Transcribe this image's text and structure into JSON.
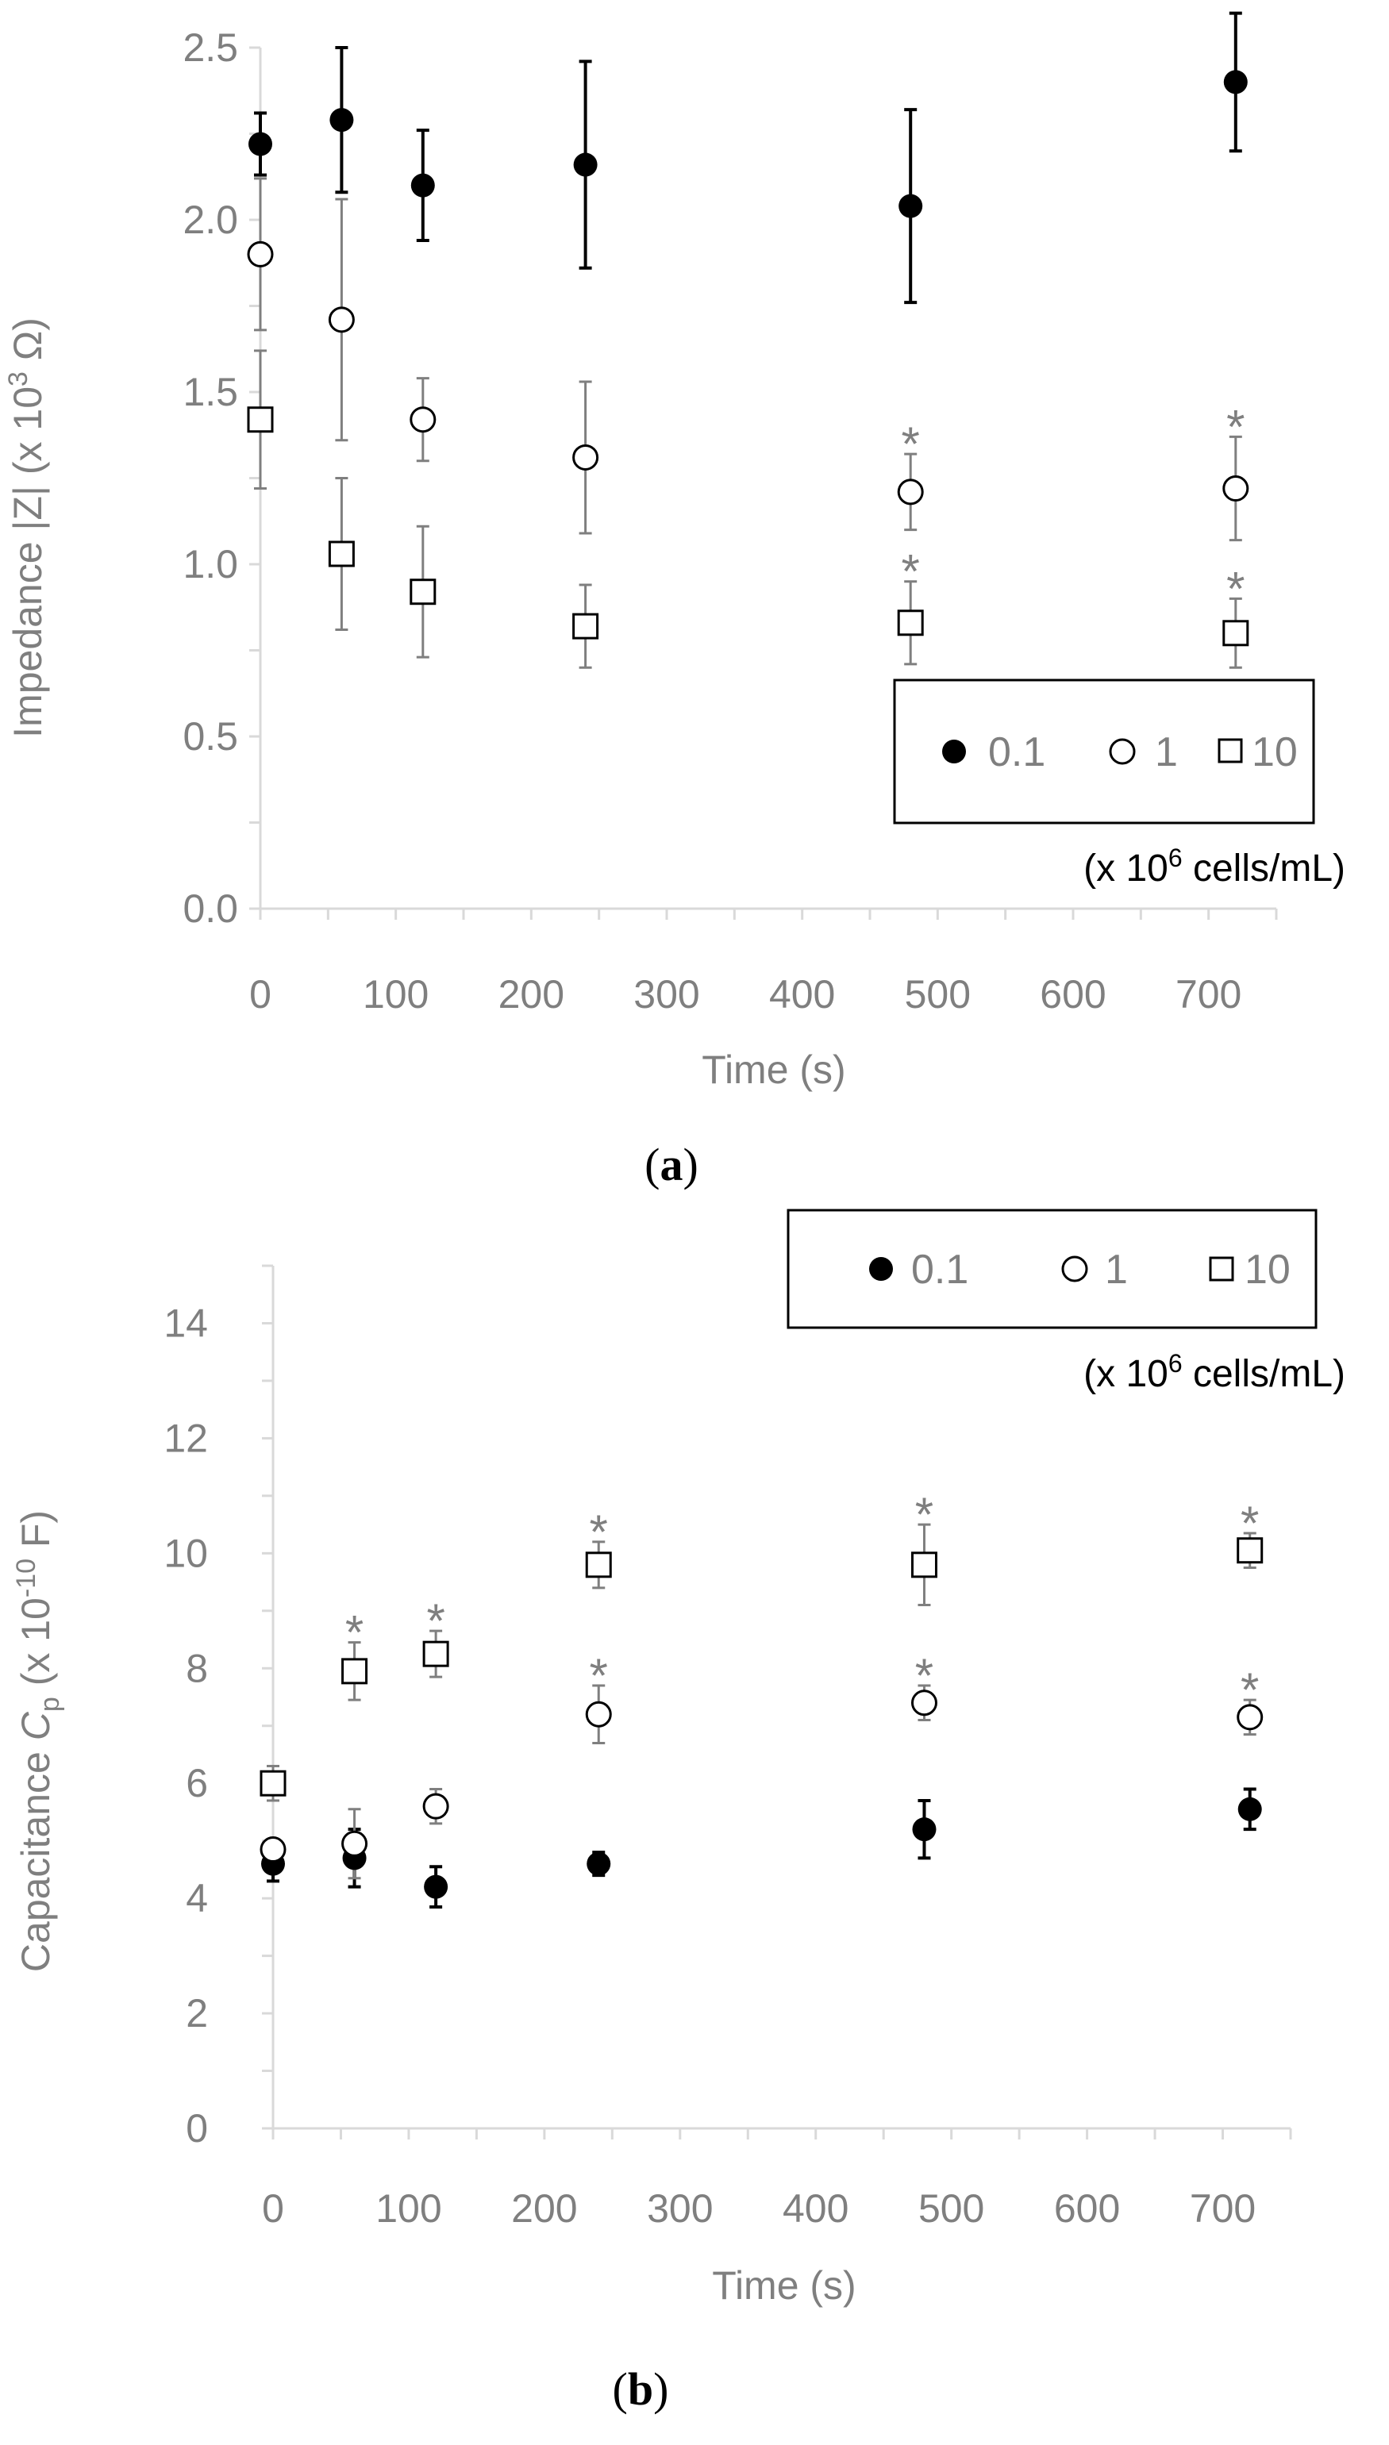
{
  "chart_data": [
    {
      "panel": "(a)",
      "panel_label_open": "(",
      "panel_label_letter": "a",
      "panel_label_close": ")",
      "type": "scatter",
      "xlabel": "Time (s)",
      "ylabel_parts": [
        "Impedance |Z| (x 10",
        "3",
        " Ω)"
      ],
      "xlim": [
        0,
        750
      ],
      "ylim": [
        0,
        2.5
      ],
      "x_ticks": [
        0,
        100,
        200,
        300,
        400,
        500,
        600,
        700
      ],
      "x_tick_labels": [
        "0",
        "100",
        "200",
        "300",
        "400",
        "500",
        "600",
        "700"
      ],
      "y_ticks": [
        0,
        0.5,
        1.0,
        1.5,
        2.0,
        2.5
      ],
      "y_tick_labels": [
        "0.0",
        "0.5",
        "1.0",
        "1.5",
        "2.0",
        "2.5"
      ],
      "series": [
        {
          "name": "0.1",
          "marker": "filled-circle",
          "x": [
            0,
            60,
            120,
            240,
            480,
            720
          ],
          "y": [
            2.22,
            2.29,
            2.1,
            2.16,
            2.04,
            2.4
          ],
          "err": [
            0.09,
            0.21,
            0.16,
            0.3,
            0.28,
            0.2
          ]
        },
        {
          "name": "1",
          "marker": "open-circle",
          "x": [
            0,
            60,
            120,
            240,
            480,
            720
          ],
          "y": [
            1.9,
            1.71,
            1.42,
            1.31,
            1.21,
            1.22
          ],
          "err": [
            0.22,
            0.35,
            0.12,
            0.22,
            0.11,
            0.15
          ]
        },
        {
          "name": "10",
          "marker": "open-square",
          "x": [
            0,
            60,
            120,
            240,
            480,
            720
          ],
          "y": [
            1.42,
            1.03,
            0.92,
            0.82,
            0.83,
            0.8
          ],
          "err": [
            0.2,
            0.22,
            0.19,
            0.12,
            0.12,
            0.1
          ]
        }
      ],
      "significance": [
        {
          "series": "1",
          "x": 480,
          "label": "*"
        },
        {
          "series": "1",
          "x": 720,
          "label": "*"
        },
        {
          "series": "10",
          "x": 480,
          "label": "*"
        },
        {
          "series": "10",
          "x": 720,
          "label": "*"
        }
      ],
      "legend": {
        "placement": "bottom-right",
        "items": [
          "0.1",
          "1",
          "10"
        ]
      },
      "unit_note_parts": [
        "(x 10",
        "6",
        " cells/mL)"
      ]
    },
    {
      "panel": "(b)",
      "panel_label_open": "(",
      "panel_label_letter": "b",
      "panel_label_close": ")",
      "type": "scatter",
      "xlabel": "Time (s)",
      "ylabel_parts": [
        "Capacitance ",
        "C",
        "p",
        " (x 10",
        "-10",
        " F)"
      ],
      "xlim": [
        0,
        750
      ],
      "ylim": [
        0,
        15
      ],
      "x_ticks": [
        0,
        100,
        200,
        300,
        400,
        500,
        600,
        700
      ],
      "x_tick_labels": [
        "0",
        "100",
        "200",
        "300",
        "400",
        "500",
        "600",
        "700"
      ],
      "y_ticks": [
        0,
        2,
        4,
        6,
        8,
        10,
        12,
        14
      ],
      "y_tick_labels": [
        "0",
        "2",
        "4",
        "6",
        "8",
        "10",
        "12",
        "14"
      ],
      "series": [
        {
          "name": "0.1",
          "marker": "filled-circle",
          "x": [
            0,
            60,
            120,
            240,
            480,
            720
          ],
          "y": [
            4.6,
            4.7,
            4.2,
            4.6,
            5.2,
            5.55
          ],
          "err": [
            0.3,
            0.5,
            0.35,
            0.2,
            0.5,
            0.35
          ]
        },
        {
          "name": "1",
          "marker": "open-circle",
          "x": [
            0,
            60,
            120,
            240,
            480,
            720
          ],
          "y": [
            4.85,
            4.95,
            5.6,
            7.2,
            7.4,
            7.15
          ],
          "err": [
            0.15,
            0.6,
            0.3,
            0.5,
            0.3,
            0.3
          ]
        },
        {
          "name": "10",
          "marker": "open-square",
          "x": [
            0,
            60,
            120,
            240,
            480,
            720
          ],
          "y": [
            6.0,
            7.95,
            8.25,
            9.8,
            9.8,
            10.05
          ],
          "err": [
            0.3,
            0.5,
            0.4,
            0.4,
            0.7,
            0.3
          ]
        }
      ],
      "significance": [
        {
          "series": "10",
          "x": 60,
          "label": "*"
        },
        {
          "series": "10",
          "x": 120,
          "label": "*"
        },
        {
          "series": "10",
          "x": 240,
          "label": "*"
        },
        {
          "series": "10",
          "x": 480,
          "label": "*"
        },
        {
          "series": "10",
          "x": 720,
          "label": "*"
        },
        {
          "series": "1",
          "x": 240,
          "label": "*"
        },
        {
          "series": "1",
          "x": 480,
          "label": "*"
        },
        {
          "series": "1",
          "x": 720,
          "label": "*"
        }
      ],
      "legend": {
        "placement": "top-right",
        "items": [
          "0.1",
          "1",
          "10"
        ]
      },
      "unit_note_parts": [
        "(x 10",
        "6",
        " cells/mL)"
      ]
    }
  ]
}
